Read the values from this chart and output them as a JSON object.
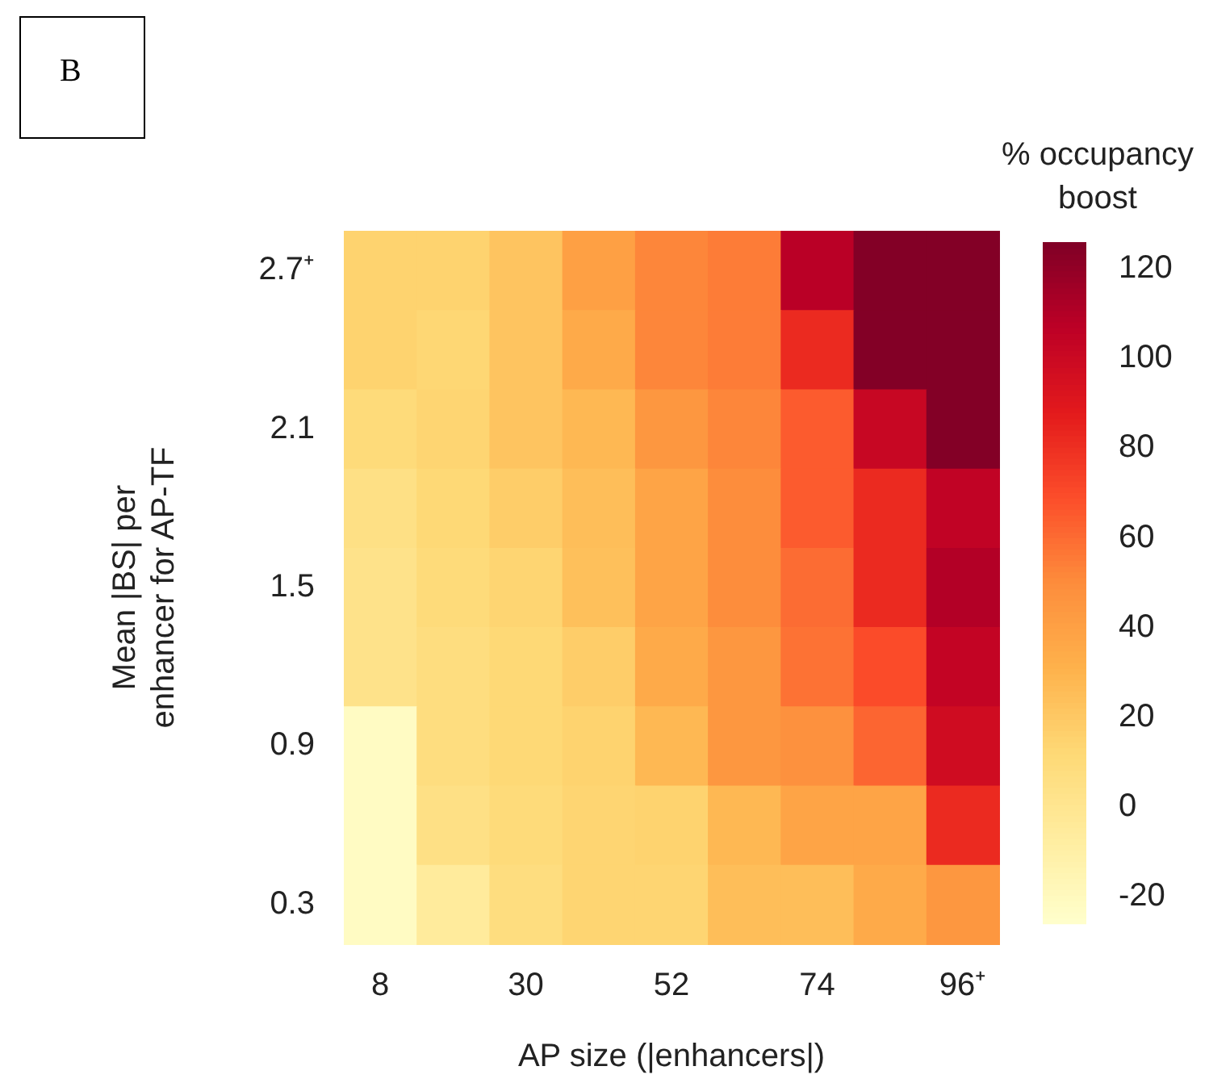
{
  "chart_data": {
    "type": "heatmap",
    "xlabel": "AP size (|enhancers|)",
    "ylabel": "Mean |BS| per enhancer for AP-TF",
    "clabel": "% occupancy boost",
    "annotations": [
      "B"
    ],
    "categories": [
      "8",
      null,
      "30",
      null,
      "52",
      null,
      "74",
      null,
      "96⁺"
    ],
    "y_categories": [
      "2.7⁺",
      null,
      "2.1",
      null,
      "1.5",
      null,
      "0.9",
      null,
      "0.3"
    ],
    "cells": [
      [
        15,
        15,
        22,
        40,
        52,
        55,
        108,
        125,
        125
      ],
      [
        15,
        13,
        22,
        35,
        52,
        55,
        82,
        125,
        125
      ],
      [
        10,
        14,
        22,
        28,
        45,
        52,
        65,
        102,
        125
      ],
      [
        5,
        12,
        18,
        25,
        38,
        50,
        65,
        82,
        105
      ],
      [
        3,
        10,
        14,
        24,
        38,
        50,
        60,
        82,
        110
      ],
      [
        3,
        8,
        12,
        18,
        35,
        45,
        58,
        70,
        104
      ],
      [
        -22,
        8,
        12,
        15,
        28,
        45,
        48,
        62,
        98
      ],
      [
        -22,
        5,
        10,
        14,
        15,
        28,
        38,
        38,
        82
      ],
      [
        -22,
        -5,
        8,
        14,
        14,
        25,
        25,
        35,
        45
      ]
    ],
    "clim": [
      -26,
      126
    ],
    "cticks": [
      -20,
      0,
      20,
      40,
      60,
      80,
      100,
      120
    ],
    "grid": false
  }
}
